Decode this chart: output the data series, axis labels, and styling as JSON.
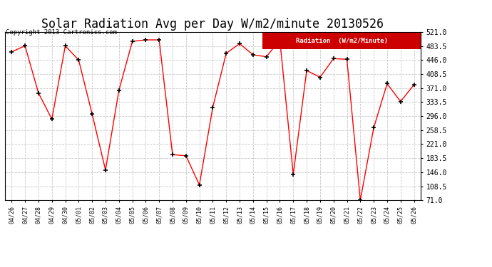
{
  "title": "Solar Radiation Avg per Day W/m2/minute 20130526",
  "copyright": "Copyright 2013 Cartronics.com",
  "legend_label": "Radiation  (W/m2/Minute)",
  "dates": [
    "04/26",
    "04/27",
    "04/28",
    "04/29",
    "04/30",
    "05/01",
    "05/02",
    "05/03",
    "05/04",
    "05/05",
    "05/06",
    "05/07",
    "05/08",
    "05/09",
    "05/10",
    "05/11",
    "05/12",
    "05/13",
    "05/14",
    "05/15",
    "05/16",
    "05/17",
    "05/18",
    "05/19",
    "05/20",
    "05/21",
    "05/22",
    "05/23",
    "05/24",
    "05/25",
    "05/26"
  ],
  "values": [
    468,
    484,
    358,
    288,
    484,
    446,
    302,
    152,
    365,
    496,
    500,
    500,
    193,
    190,
    112,
    320,
    464,
    490,
    460,
    455,
    500,
    140,
    418,
    400,
    450,
    448,
    71,
    265,
    383,
    335,
    380
  ],
  "line_color": "#ff0000",
  "marker_color": "#000000",
  "bg_color": "#ffffff",
  "plot_bg_color": "#ffffff",
  "grid_color": "#c8c8c8",
  "ylim": [
    71.0,
    521.0
  ],
  "yticks": [
    71.0,
    108.5,
    146.0,
    183.5,
    221.0,
    258.5,
    296.0,
    333.5,
    371.0,
    408.5,
    446.0,
    483.5,
    521.0
  ],
  "title_fontsize": 12,
  "legend_bg": "#cc0000",
  "legend_text_color": "#ffffff",
  "figure_width": 6.9,
  "figure_height": 3.75,
  "dpi": 100
}
